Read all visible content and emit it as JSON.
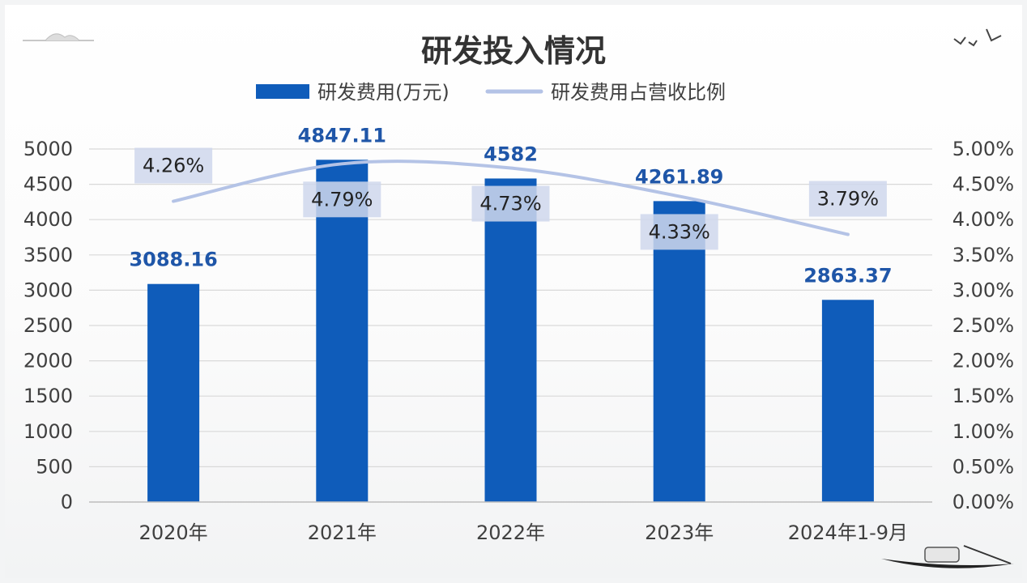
{
  "chart_data": {
    "type": "bar",
    "title": "研发投入情况",
    "categories": [
      "2020年",
      "2021年",
      "2022年",
      "2023年",
      "2024年1-9月"
    ],
    "series": [
      {
        "name": "研发费用(万元)",
        "type": "bar",
        "axis": "left",
        "values": [
          3088.16,
          4847.11,
          4582,
          4261.89,
          2863.37
        ],
        "labels": [
          "3088.16",
          "4847.11",
          "4582",
          "4261.89",
          "2863.37"
        ]
      },
      {
        "name": "研发费用占营收比例",
        "type": "line",
        "axis": "right",
        "values": [
          4.26,
          4.79,
          4.73,
          4.33,
          3.79
        ],
        "labels": [
          "4.26%",
          "4.79%",
          "4.73%",
          "4.33%",
          "3.79%"
        ]
      }
    ],
    "ylim": [
      0,
      5000
    ],
    "y2lim": [
      0,
      5
    ],
    "y_ticks": [
      "0",
      "500",
      "1000",
      "1500",
      "2000",
      "2500",
      "3000",
      "3500",
      "4000",
      "4500",
      "5000"
    ],
    "y2_ticks": [
      "0.00%",
      "0.50%",
      "1.00%",
      "1.50%",
      "2.00%",
      "2.50%",
      "3.00%",
      "3.50%",
      "4.00%",
      "4.50%",
      "5.00%"
    ],
    "grid": true,
    "legend_position": "top",
    "colors": {
      "bar": "#0f5cba",
      "line": "#b4c3e6",
      "bar_label": "#1f56a8",
      "label_box": "#cfd7ec"
    }
  }
}
